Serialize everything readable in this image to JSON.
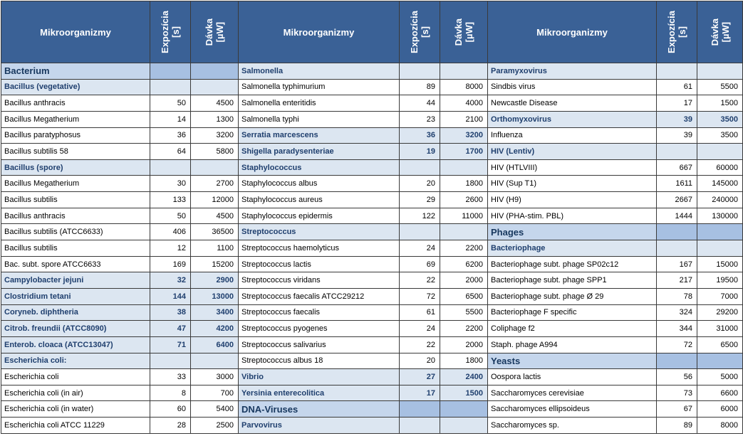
{
  "header": {
    "name": "Mikroorganizmy",
    "exposure": [
      "Expozícia",
      "[s]"
    ],
    "dose": [
      "Dávka",
      "[µW]"
    ]
  },
  "styles": {
    "group": {
      "background": "#a7c0e2",
      "name_background": "#c5d6ec",
      "color": "#17375e"
    },
    "sub": {
      "background": "#dce6f1",
      "color": "#1f3f6e"
    },
    "item": {
      "background": "#ffffff",
      "color": "#000000"
    }
  },
  "groups": [
    {
      "rows": [
        {
          "name": "Bacterium",
          "style": "group"
        },
        {
          "name": "Bacillus  (vegetative)",
          "style": "sub"
        },
        {
          "name": "Bacillus anthracis",
          "exposure": 50,
          "dose": 4500,
          "style": "item"
        },
        {
          "name": "Bacillus Megatherium",
          "exposure": 14,
          "dose": 1300,
          "style": "item"
        },
        {
          "name": "Bacillus paratyphosus",
          "exposure": 36,
          "dose": 3200,
          "style": "item"
        },
        {
          "name": "Bacillus subtilis 58",
          "exposure": 64,
          "dose": 5800,
          "style": "item"
        },
        {
          "name": "Bacillus  (spore)",
          "style": "sub"
        },
        {
          "name": "Bacillus Megatherium",
          "exposure": 30,
          "dose": 2700,
          "style": "item"
        },
        {
          "name": "Bacillus subtilis",
          "exposure": 133,
          "dose": 12000,
          "style": "item"
        },
        {
          "name": "Bacillus anthracis",
          "exposure": 50,
          "dose": 4500,
          "style": "item"
        },
        {
          "name": "Bacillus subtilis (ATCC6633)",
          "exposure": 406,
          "dose": 36500,
          "style": "item"
        },
        {
          "name": "Bacillus subtilis",
          "exposure": 12,
          "dose": 1100,
          "style": "item"
        },
        {
          "name": "Bac. subt. spore ATCC6633",
          "exposure": 169,
          "dose": 15200,
          "style": "item"
        },
        {
          "name": "Campylobacter jejuni",
          "exposure": 32,
          "dose": 2900,
          "style": "sub"
        },
        {
          "name": "Clostridium tetani",
          "exposure": 144,
          "dose": 13000,
          "style": "sub"
        },
        {
          "name": "Coryneb. diphtheria",
          "exposure": 38,
          "dose": 3400,
          "style": "sub"
        },
        {
          "name": "Citrob. freundii (ATCC8090)",
          "exposure": 47,
          "dose": 4200,
          "style": "sub"
        },
        {
          "name": "Enterob. cloaca (ATCC13047)",
          "exposure": 71,
          "dose": 6400,
          "style": "sub"
        },
        {
          "name": "Escherichia coli:",
          "style": "sub"
        },
        {
          "name": "Escherichia coli",
          "exposure": 33,
          "dose": 3000,
          "style": "item"
        },
        {
          "name": "Escherichia coli (in air)",
          "exposure": 8,
          "dose": 700,
          "style": "item"
        },
        {
          "name": "Escherichia coli (in water)",
          "exposure": 60,
          "dose": 5400,
          "style": "item"
        },
        {
          "name": "Escherichia coli ATCC 11229",
          "exposure": 28,
          "dose": 2500,
          "style": "item"
        }
      ]
    },
    {
      "rows": [
        {
          "name": "Salmonella",
          "style": "sub"
        },
        {
          "name": "Salmonella typhimurium",
          "exposure": 89,
          "dose": 8000,
          "style": "item"
        },
        {
          "name": "Salmonella enteritidis",
          "exposure": 44,
          "dose": 4000,
          "style": "item"
        },
        {
          "name": "Salmonella typhi",
          "exposure": 23,
          "dose": 2100,
          "style": "item"
        },
        {
          "name": "Serratia marcescens",
          "exposure": 36,
          "dose": 3200,
          "style": "sub"
        },
        {
          "name": "Shigella paradysenteriae",
          "exposure": 19,
          "dose": 1700,
          "style": "sub"
        },
        {
          "name": "Staphylococcus",
          "style": "sub"
        },
        {
          "name": "Staphylococcus albus",
          "exposure": 20,
          "dose": 1800,
          "style": "item"
        },
        {
          "name": "Staphylococcus aureus",
          "exposure": 29,
          "dose": 2600,
          "style": "item"
        },
        {
          "name": "Staphylococcus epidermis",
          "exposure": 122,
          "dose": 11000,
          "style": "item"
        },
        {
          "name": "Streptococcus",
          "style": "sub"
        },
        {
          "name": "Streptococcus haemolyticus",
          "exposure": 24,
          "dose": 2200,
          "style": "item"
        },
        {
          "name": "Streptococcus lactis",
          "exposure": 69,
          "dose": 6200,
          "style": "item"
        },
        {
          "name": "Streptococcus viridans",
          "exposure": 22,
          "dose": 2000,
          "style": "item"
        },
        {
          "name": "Streptococcus faecalis ATCC29212",
          "exposure": 72,
          "dose": 6500,
          "style": "item"
        },
        {
          "name": "Streptococcus faecalis",
          "exposure": 61,
          "dose": 5500,
          "style": "item"
        },
        {
          "name": "Streptococcus pyogenes",
          "exposure": 24,
          "dose": 2200,
          "style": "item"
        },
        {
          "name": "Streptococcus salivarius",
          "exposure": 22,
          "dose": 2000,
          "style": "item"
        },
        {
          "name": "Streptococcus albus 18",
          "exposure": 20,
          "dose": 1800,
          "style": "item"
        },
        {
          "name": "Vibrio",
          "exposure": 27,
          "dose": 2400,
          "style": "sub"
        },
        {
          "name": "Yersinia enterecolitica",
          "exposure": 17,
          "dose": 1500,
          "style": "sub"
        },
        {
          "name": "DNA-Viruses",
          "style": "group"
        },
        {
          "name": "Parvovirus",
          "style": "sub"
        }
      ]
    },
    {
      "rows": [
        {
          "name": "Paramyxovirus",
          "style": "sub"
        },
        {
          "name": "Sindbis virus",
          "exposure": 61,
          "dose": 5500,
          "style": "item"
        },
        {
          "name": "Newcastle Disease",
          "exposure": 17,
          "dose": 1500,
          "style": "item"
        },
        {
          "name": "Orthomyxovirus",
          "exposure": 39,
          "dose": 3500,
          "style": "sub"
        },
        {
          "name": "Influenza",
          "exposure": 39,
          "dose": 3500,
          "style": "item"
        },
        {
          "name": "HIV (Lentiv)",
          "style": "sub"
        },
        {
          "name": "HIV (HTLVIII)",
          "exposure": 667,
          "dose": 60000,
          "style": "item"
        },
        {
          "name": "HIV (Sup T1)",
          "exposure": 1611,
          "dose": 145000,
          "style": "item"
        },
        {
          "name": "HIV (H9)",
          "exposure": 2667,
          "dose": 240000,
          "style": "item"
        },
        {
          "name": "HIV (PHA-stim. PBL)",
          "exposure": 1444,
          "dose": 130000,
          "style": "item"
        },
        {
          "name": "Phages",
          "style": "group"
        },
        {
          "name": "Bacteriophage",
          "style": "sub"
        },
        {
          "name": "Bacteriophage subt. phage SP02c12",
          "exposure": 167,
          "dose": 15000,
          "style": "item"
        },
        {
          "name": "Bacteriophage subt. phage SPP1",
          "exposure": 217,
          "dose": 19500,
          "style": "item"
        },
        {
          "name": "Bacteriophage subt. phage Ø 29",
          "exposure": 78,
          "dose": 7000,
          "style": "item"
        },
        {
          "name": "Bacteriophage F specific",
          "exposure": 324,
          "dose": 29200,
          "style": "item"
        },
        {
          "name": "Coliphage f2",
          "exposure": 344,
          "dose": 31000,
          "style": "item"
        },
        {
          "name": "Staph. phage A994",
          "exposure": 72,
          "dose": 6500,
          "style": "item"
        },
        {
          "name": "Yeasts",
          "style": "group"
        },
        {
          "name": "Oospora lactis",
          "exposure": 56,
          "dose": 5000,
          "style": "item"
        },
        {
          "name": "Saccharomyces cerevisiae",
          "exposure": 73,
          "dose": 6600,
          "style": "item"
        },
        {
          "name": "Saccharomyces ellipsoideus",
          "exposure": 67,
          "dose": 6000,
          "style": "item"
        },
        {
          "name": "Saccharomyces sp.",
          "exposure": 89,
          "dose": 8000,
          "style": "item"
        }
      ]
    }
  ]
}
